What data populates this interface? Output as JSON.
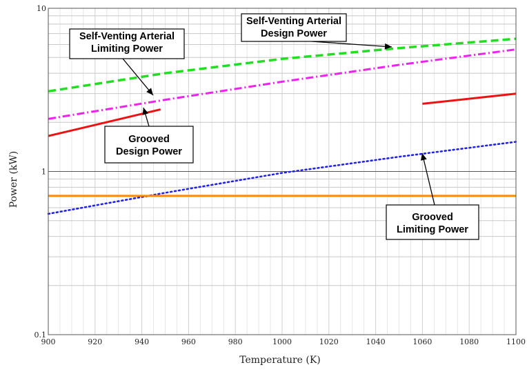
{
  "chart_data": {
    "type": "line",
    "xlabel": "Temperature (K)",
    "ylabel": "Power (kW)",
    "xlim": [
      900,
      1100
    ],
    "ylim": [
      0.1,
      10
    ],
    "y_scale": "log",
    "grid": true,
    "x_ticks": [
      900,
      920,
      940,
      960,
      980,
      1000,
      1020,
      1040,
      1060,
      1080,
      1100
    ],
    "y_ticks": [
      "0.1",
      "1",
      "10"
    ],
    "series": [
      {
        "name": "Self-Venting Arterial Design Power",
        "color": "#22dd22",
        "style": "dashed",
        "x": [
          900,
          950,
          1000,
          1050,
          1100
        ],
        "y": [
          3.1,
          4.0,
          4.9,
          5.7,
          6.5
        ]
      },
      {
        "name": "Self-Venting Arterial Limiting Power",
        "color": "#ee22ee",
        "style": "dash-dot",
        "x": [
          900,
          950,
          1000,
          1050,
          1100
        ],
        "y": [
          2.1,
          2.75,
          3.55,
          4.5,
          5.6
        ]
      },
      {
        "name": "Grooved Design Power",
        "color": "#ee1111",
        "style": "solid",
        "x": [
          900,
          948,
          1060,
          1100
        ],
        "y": [
          1.65,
          2.4,
          2.6,
          3.0
        ],
        "gap_between": [
          948,
          1060
        ]
      },
      {
        "name": "Grooved Limiting Power",
        "color": "#2222ee",
        "style": "dotted",
        "x": [
          900,
          950,
          1000,
          1050,
          1100
        ],
        "y": [
          0.55,
          0.74,
          0.98,
          1.23,
          1.52
        ]
      },
      {
        "color": "#ff8800",
        "style": "solid",
        "x": [
          900,
          1100
        ],
        "y": [
          0.71,
          0.71
        ]
      }
    ],
    "annotations": [
      {
        "key": "sv_design",
        "lines": [
          "Self-Venting Arterial",
          "Design Power"
        ]
      },
      {
        "key": "sv_limiting",
        "lines": [
          "Self-Venting Arterial",
          "Limiting Power"
        ]
      },
      {
        "key": "grooved_design",
        "lines": [
          "Grooved",
          "Design Power"
        ]
      },
      {
        "key": "grooved_limiting",
        "lines": [
          "Grooved",
          "Limiting Power"
        ]
      }
    ]
  }
}
